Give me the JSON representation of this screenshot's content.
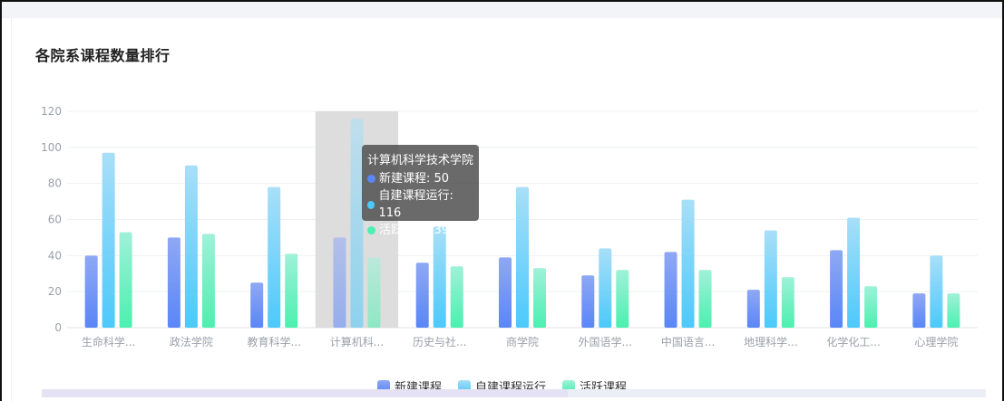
{
  "chart_data": {
    "type": "bar",
    "title": "各院系课程数量排行",
    "categories": [
      "生命科学...",
      "政法学院",
      "教育科学...",
      "计算机科...",
      "历史与社...",
      "商学院",
      "外国语学...",
      "中国语言...",
      "地理科学...",
      "化学化工...",
      "心理学院"
    ],
    "series": [
      {
        "name": "新建课程",
        "values": [
          40,
          50,
          25,
          50,
          36,
          39,
          29,
          42,
          21,
          43,
          19
        ],
        "color_top": "#8fa8f4",
        "color_bottom": "#5a86f7"
      },
      {
        "name": "自建课程运行",
        "values": [
          97,
          90,
          78,
          116,
          56,
          78,
          44,
          71,
          54,
          61,
          40
        ],
        "color_top": "#a8dff8",
        "color_bottom": "#4cc9fb"
      },
      {
        "name": "活跃课程",
        "values": [
          53,
          52,
          41,
          39,
          34,
          33,
          32,
          32,
          28,
          23,
          19
        ],
        "color_top": "#9ff1d8",
        "color_bottom": "#4cf0b0"
      }
    ],
    "ylim": [
      0,
      120
    ],
    "yticks": [
      0,
      20,
      40,
      60,
      80,
      100,
      120
    ],
    "grid": true,
    "legend_position": "bottom-center",
    "highlighted_index": 3,
    "tooltip": {
      "title": "计算机科学技术学院",
      "rows": [
        {
          "label": "新建课程: 50",
          "color": "#5a86f7"
        },
        {
          "label": "自建课程运行: 116",
          "color": "#4cc9fb"
        },
        {
          "label": "活跃课程: 39",
          "color": "#4cf0b0"
        }
      ]
    }
  }
}
